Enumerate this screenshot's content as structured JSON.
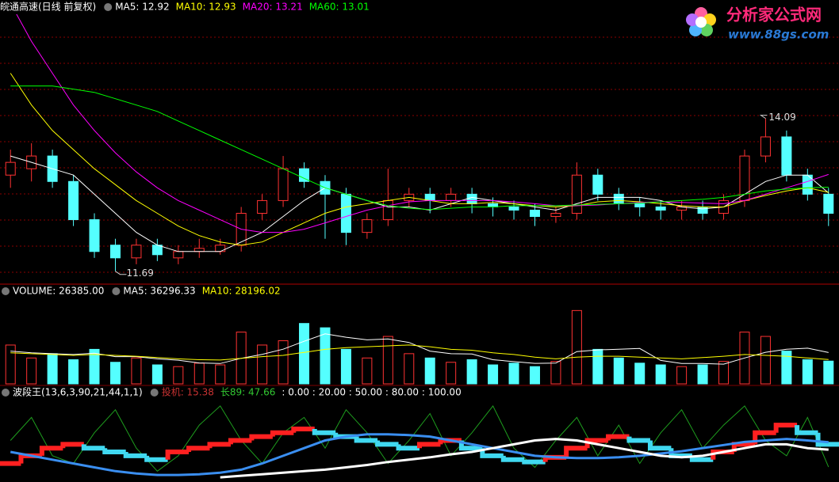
{
  "logo": {
    "title": "分析家公式网",
    "url": "www.88gs.com"
  },
  "chart_data": [
    {
      "type": "candlestick",
      "title": "皖通高速(日线 前复权)",
      "title_color": "#ffffff",
      "up_color": "#ff3232",
      "down_color": "#54ffff",
      "ylim": [
        11.5,
        15.95
      ],
      "open": [
        13.2,
        13.3,
        13.5,
        13.1,
        12.5,
        12.1,
        11.9,
        12.1,
        11.9,
        12.0,
        12.0,
        12.1,
        12.6,
        12.8,
        13.3,
        13.1,
        12.9,
        12.3,
        12.5,
        12.8,
        12.9,
        12.8,
        12.9,
        12.75,
        12.7,
        12.65,
        12.55,
        12.6,
        13.2,
        12.9,
        12.75,
        12.7,
        12.65,
        12.7,
        12.6,
        12.8,
        13.5,
        13.8,
        13.2,
        12.9
      ],
      "high": [
        13.6,
        13.7,
        13.6,
        13.2,
        12.6,
        12.2,
        12.2,
        12.2,
        12.1,
        12.2,
        12.2,
        12.7,
        12.9,
        13.5,
        13.4,
        13.2,
        13.0,
        12.6,
        13.3,
        13.0,
        13.0,
        13.0,
        13.0,
        12.85,
        12.8,
        12.75,
        12.7,
        13.4,
        13.3,
        13.0,
        12.85,
        12.8,
        12.8,
        12.8,
        12.9,
        13.6,
        14.09,
        13.9,
        13.3,
        13.0
      ],
      "low": [
        13.0,
        13.1,
        13.0,
        12.4,
        11.9,
        11.69,
        11.8,
        11.85,
        11.8,
        11.9,
        11.95,
        12.0,
        12.5,
        12.7,
        13.0,
        12.2,
        12.1,
        12.2,
        12.4,
        12.7,
        12.6,
        12.7,
        12.6,
        12.55,
        12.5,
        12.4,
        12.45,
        12.5,
        12.8,
        12.65,
        12.55,
        12.5,
        12.5,
        12.5,
        12.5,
        12.7,
        13.4,
        13.1,
        12.8,
        12.4
      ],
      "close": [
        13.4,
        13.5,
        13.1,
        12.5,
        12.0,
        11.9,
        12.1,
        11.95,
        12.0,
        12.05,
        12.1,
        12.6,
        12.8,
        13.3,
        13.1,
        12.9,
        12.3,
        12.5,
        12.8,
        12.9,
        12.8,
        12.9,
        12.75,
        12.7,
        12.65,
        12.55,
        12.6,
        13.2,
        12.9,
        12.75,
        12.7,
        12.65,
        12.7,
        12.6,
        12.8,
        13.5,
        13.8,
        13.2,
        12.9,
        12.6
      ],
      "series": [
        {
          "label": "MA5: 12.92",
          "color": "#ffffff",
          "values": [
            13.5,
            13.4,
            13.3,
            13.2,
            12.9,
            12.6,
            12.3,
            12.1,
            12.0,
            12.0,
            12.0,
            12.15,
            12.3,
            12.55,
            12.8,
            13.0,
            12.9,
            12.8,
            12.7,
            12.7,
            12.65,
            12.75,
            12.85,
            12.8,
            12.75,
            12.7,
            12.65,
            12.75,
            12.85,
            12.85,
            12.85,
            12.8,
            12.7,
            12.67,
            12.7,
            12.9,
            13.1,
            13.2,
            13.2,
            12.92
          ]
        },
        {
          "label": "MA10: 12.93",
          "color": "#ffff00",
          "values": [
            14.8,
            14.3,
            13.9,
            13.6,
            13.3,
            13.05,
            12.8,
            12.6,
            12.4,
            12.25,
            12.15,
            12.1,
            12.15,
            12.3,
            12.45,
            12.6,
            12.7,
            12.75,
            12.8,
            12.85,
            12.8,
            12.75,
            12.75,
            12.77,
            12.75,
            12.72,
            12.7,
            12.72,
            12.78,
            12.8,
            12.78,
            12.75,
            12.72,
            12.7,
            12.7,
            12.8,
            12.88,
            12.95,
            13.0,
            12.93
          ]
        },
        {
          "label": "MA20: 13.21",
          "color": "#ff00ff",
          "values": [
            15.9,
            15.3,
            14.8,
            14.3,
            13.9,
            13.55,
            13.25,
            13.0,
            12.8,
            12.65,
            12.5,
            12.35,
            12.3,
            12.3,
            12.35,
            12.45,
            12.55,
            12.65,
            12.72,
            12.78,
            12.8,
            12.8,
            12.8,
            12.8,
            12.78,
            12.75,
            12.72,
            12.72,
            12.73,
            12.75,
            12.77,
            12.78,
            12.77,
            12.76,
            12.75,
            12.8,
            12.9,
            13.0,
            13.1,
            13.21
          ]
        },
        {
          "label": "MA60: 13.01",
          "color": "#00ff00",
          "values": [
            14.6,
            14.6,
            14.6,
            14.55,
            14.5,
            14.4,
            14.3,
            14.2,
            14.05,
            13.9,
            13.75,
            13.6,
            13.45,
            13.3,
            13.15,
            13.0,
            12.9,
            12.8,
            12.72,
            12.68,
            12.66,
            12.68,
            12.7,
            12.7,
            12.72,
            12.72,
            12.72,
            12.73,
            12.74,
            12.75,
            12.76,
            12.78,
            12.8,
            12.82,
            12.85,
            12.9,
            12.95,
            12.98,
            13.0,
            13.01
          ]
        }
      ],
      "high_label": 14.09,
      "low_label": 11.69
    },
    {
      "type": "volume",
      "title": "VOLUME: 26385.00",
      "title_color": "#ffffff",
      "ylim": [
        0,
        100000
      ],
      "values": [
        45000,
        30000,
        35000,
        28000,
        40000,
        25000,
        30000,
        22000,
        20000,
        24000,
        22000,
        60000,
        45000,
        50000,
        70000,
        65000,
        40000,
        30000,
        55000,
        35000,
        30000,
        25000,
        28000,
        22000,
        24000,
        20000,
        26000,
        85000,
        40000,
        30000,
        24000,
        22000,
        20000,
        22000,
        26000,
        60000,
        55000,
        38000,
        28000,
        26385
      ],
      "series": [
        {
          "label": "MA5: 36296.33",
          "color": "#ffffff",
          "values": [
            38000,
            36000,
            35000,
            34000,
            35600,
            31600,
            31600,
            29000,
            27400,
            24200,
            23600,
            29600,
            34200,
            40200,
            49400,
            58000,
            54000,
            51000,
            52000,
            48000,
            38000,
            35000,
            34600,
            28000,
            25800,
            23800,
            24000,
            37400,
            39400,
            40200,
            41000,
            27200,
            23600,
            23600,
            22800,
            30000,
            36600,
            40200,
            41400,
            36296.33
          ]
        },
        {
          "label": "MA10: 28196.02",
          "color": "#ffff00",
          "values": [
            36000,
            35000,
            34000,
            33000,
            34000,
            33000,
            32000,
            30500,
            29000,
            28000,
            27600,
            29600,
            31600,
            33000,
            36500,
            40000,
            42000,
            43000,
            44000,
            45000,
            43000,
            40000,
            39000,
            36000,
            34000,
            31000,
            29000,
            31000,
            32000,
            32000,
            31000,
            30000,
            29000,
            30500,
            32000,
            34000,
            33000,
            32000,
            30000,
            28196.02
          ]
        }
      ]
    },
    {
      "type": "indicator",
      "title": "波段王(13,6,3,90,21,44,1,1)",
      "title_color": "#ffffff",
      "ylim": [
        0,
        100
      ],
      "up_color": "#ff2020",
      "down_color": "#40d8f0",
      "trend": [
        20,
        30,
        40,
        45,
        40,
        35,
        30,
        25,
        35,
        40,
        45,
        50,
        55,
        60,
        65,
        60,
        55,
        50,
        45,
        40,
        45,
        50,
        40,
        30,
        25,
        22,
        28,
        40,
        50,
        55,
        50,
        40,
        30,
        25,
        35,
        45,
        60,
        70,
        60,
        45
      ],
      "series": [
        {
          "label": "投机: 15.38",
          "label_color": "#c83232",
          "color": "#1e9e1e",
          "width": 1,
          "values": [
            50,
            80,
            30,
            20,
            60,
            90,
            40,
            10,
            30,
            70,
            95,
            50,
            20,
            60,
            80,
            40,
            90,
            60,
            20,
            50,
            85,
            30,
            60,
            95,
            40,
            15,
            50,
            80,
            30,
            70,
            20,
            60,
            90,
            40,
            70,
            95,
            50,
            30,
            80,
            15.38
          ]
        },
        {
          "label": "长89: 47.66",
          "label_color": "#32c832",
          "color": "#3a8ef0",
          "width": 3,
          "values": [
            35,
            30,
            25,
            20,
            15,
            10,
            7,
            5,
            5,
            6,
            8,
            12,
            20,
            30,
            40,
            50,
            55,
            58,
            58,
            57,
            55,
            50,
            45,
            40,
            35,
            30,
            28,
            27,
            27,
            28,
            30,
            33,
            36,
            40,
            44,
            48,
            50,
            52,
            50,
            47.66
          ]
        },
        {
          "label": null,
          "color": "#ffffff",
          "width": 3,
          "values": [
            null,
            null,
            null,
            null,
            null,
            null,
            null,
            null,
            null,
            null,
            2,
            4,
            6,
            8,
            10,
            12,
            15,
            18,
            22,
            25,
            28,
            32,
            35,
            40,
            45,
            50,
            52,
            50,
            45,
            40,
            35,
            30,
            28,
            30,
            35,
            40,
            45,
            45,
            40,
            38
          ]
        }
      ],
      "levels_text": ": 0.00 : 20.00 : 50.00 : 80.00 : 100.00"
    }
  ]
}
